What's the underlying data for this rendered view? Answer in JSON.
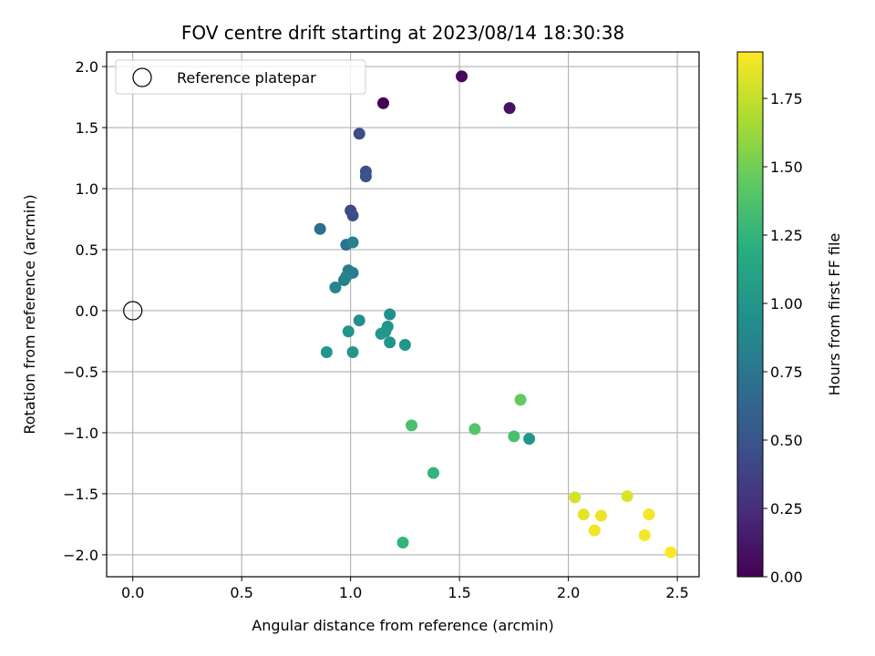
{
  "chart_data": {
    "type": "scatter",
    "title": "FOV centre drift starting at 2023/08/14 18:30:38",
    "xlabel": "Angular distance from reference (arcmin)",
    "ylabel": "Rotation from reference (arcmin)",
    "xlim": [
      -0.12,
      2.6
    ],
    "ylim": [
      -2.18,
      2.12
    ],
    "xticks": [
      "0.0",
      "0.5",
      "1.0",
      "1.5",
      "2.0",
      "2.5"
    ],
    "yticks": [
      "2.0",
      "1.5",
      "1.0",
      "0.5",
      "0.0",
      "−0.5",
      "−1.0",
      "−1.5",
      "−2.0"
    ],
    "grid": true,
    "legend": {
      "placement": "top-left",
      "entries": [
        "Reference platepar"
      ]
    },
    "reference_point": {
      "x": 0.0,
      "y": 0.0
    },
    "colorbar": {
      "label": "Hours from first FF file",
      "range": [
        0.0,
        1.92
      ],
      "colormap": "viridis",
      "ticks": [
        "0.00",
        "0.25",
        "0.50",
        "0.75",
        "1.00",
        "1.25",
        "1.50",
        "1.75"
      ]
    },
    "series": [
      {
        "points": [
          {
            "x": 1.15,
            "y": 1.7,
            "c": 0.0
          },
          {
            "x": 1.51,
            "y": 1.92,
            "c": 0.05
          },
          {
            "x": 1.73,
            "y": 1.66,
            "c": 0.1
          },
          {
            "x": 1.04,
            "y": 1.45,
            "c": 0.45
          },
          {
            "x": 1.07,
            "y": 1.14,
            "c": 0.47
          },
          {
            "x": 1.07,
            "y": 1.1,
            "c": 0.48
          },
          {
            "x": 1.0,
            "y": 0.82,
            "c": 0.42
          },
          {
            "x": 1.01,
            "y": 0.78,
            "c": 0.45
          },
          {
            "x": 0.86,
            "y": 0.67,
            "c": 0.7
          },
          {
            "x": 0.98,
            "y": 0.54,
            "c": 0.72
          },
          {
            "x": 1.01,
            "y": 0.56,
            "c": 0.85
          },
          {
            "x": 0.99,
            "y": 0.33,
            "c": 0.78
          },
          {
            "x": 1.01,
            "y": 0.31,
            "c": 0.8
          },
          {
            "x": 0.97,
            "y": 0.25,
            "c": 0.82
          },
          {
            "x": 0.98,
            "y": 0.28,
            "c": 0.84
          },
          {
            "x": 0.93,
            "y": 0.19,
            "c": 0.86
          },
          {
            "x": 1.18,
            "y": -0.03,
            "c": 0.95
          },
          {
            "x": 1.04,
            "y": -0.08,
            "c": 0.95
          },
          {
            "x": 0.99,
            "y": -0.17,
            "c": 1.0
          },
          {
            "x": 1.17,
            "y": -0.13,
            "c": 1.0
          },
          {
            "x": 1.16,
            "y": -0.17,
            "c": 1.0
          },
          {
            "x": 1.14,
            "y": -0.19,
            "c": 1.0
          },
          {
            "x": 1.18,
            "y": -0.26,
            "c": 1.0
          },
          {
            "x": 1.25,
            "y": -0.28,
            "c": 1.0
          },
          {
            "x": 0.89,
            "y": -0.34,
            "c": 1.0
          },
          {
            "x": 1.01,
            "y": -0.34,
            "c": 1.0
          },
          {
            "x": 1.78,
            "y": -0.73,
            "c": 1.45
          },
          {
            "x": 1.28,
            "y": -0.94,
            "c": 1.35
          },
          {
            "x": 1.57,
            "y": -0.97,
            "c": 1.4
          },
          {
            "x": 1.75,
            "y": -1.03,
            "c": 1.35
          },
          {
            "x": 1.82,
            "y": -1.05,
            "c": 1.0
          },
          {
            "x": 1.38,
            "y": -1.33,
            "c": 1.25
          },
          {
            "x": 1.24,
            "y": -1.9,
            "c": 1.25
          },
          {
            "x": 2.03,
            "y": -1.53,
            "c": 1.8
          },
          {
            "x": 2.27,
            "y": -1.52,
            "c": 1.82
          },
          {
            "x": 2.07,
            "y": -1.67,
            "c": 1.85
          },
          {
            "x": 2.15,
            "y": -1.68,
            "c": 1.87
          },
          {
            "x": 2.37,
            "y": -1.67,
            "c": 1.9
          },
          {
            "x": 2.12,
            "y": -1.8,
            "c": 1.88
          },
          {
            "x": 2.35,
            "y": -1.84,
            "c": 1.9
          },
          {
            "x": 2.47,
            "y": -1.98,
            "c": 1.92
          }
        ]
      }
    ]
  }
}
